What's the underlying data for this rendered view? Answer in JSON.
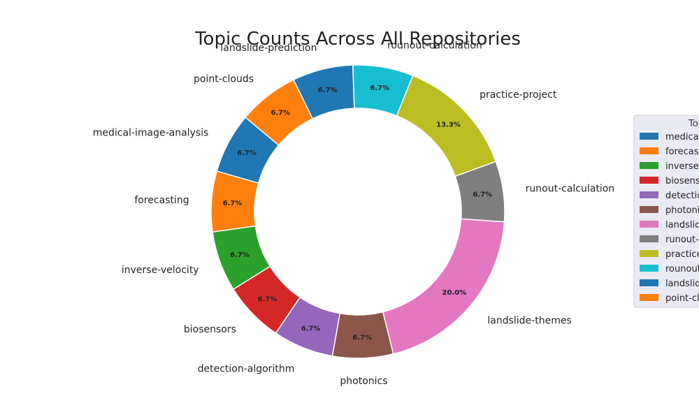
{
  "chart_data": {
    "type": "pie",
    "style": "donut",
    "title": "Topic Counts Across All Repositories",
    "legend_title": "Topics",
    "legend_placement": "right (clipped at page edge)",
    "start_angle_deg": 140,
    "direction": "counterclockwise",
    "slices": [
      {
        "label": "medical-image-analysis",
        "value": 1,
        "percent_label": "6.7%",
        "color": "#1f77b4"
      },
      {
        "label": "forecasting",
        "value": 1,
        "percent_label": "6.7%",
        "color": "#ff7f0e"
      },
      {
        "label": "inverse-velocity",
        "value": 1,
        "percent_label": "6.7%",
        "color": "#2ca02c"
      },
      {
        "label": "biosensors",
        "value": 1,
        "percent_label": "6.7%",
        "color": "#d62728"
      },
      {
        "label": "detection-algorithm",
        "value": 1,
        "percent_label": "6.7%",
        "color": "#9467bd"
      },
      {
        "label": "photonics",
        "value": 1,
        "percent_label": "6.7%",
        "color": "#8c564b"
      },
      {
        "label": "landslide-themes",
        "value": 3,
        "percent_label": "20.0%",
        "color": "#e377c2"
      },
      {
        "label": "runout-calculation",
        "value": 1,
        "percent_label": "6.7%",
        "color": "#7f7f7f"
      },
      {
        "label": "practice-project",
        "value": 2,
        "percent_label": "13.3%",
        "color": "#bcbd22"
      },
      {
        "label": "rounout-calculation",
        "value": 1,
        "percent_label": "6.7%",
        "color": "#17becf"
      },
      {
        "label": "landslide-prediction",
        "value": 1,
        "percent_label": "6.7%",
        "color": "#1f77b4"
      },
      {
        "label": "point-clouds",
        "value": 1,
        "percent_label": "6.7%",
        "color": "#ff7f0e"
      }
    ]
  }
}
